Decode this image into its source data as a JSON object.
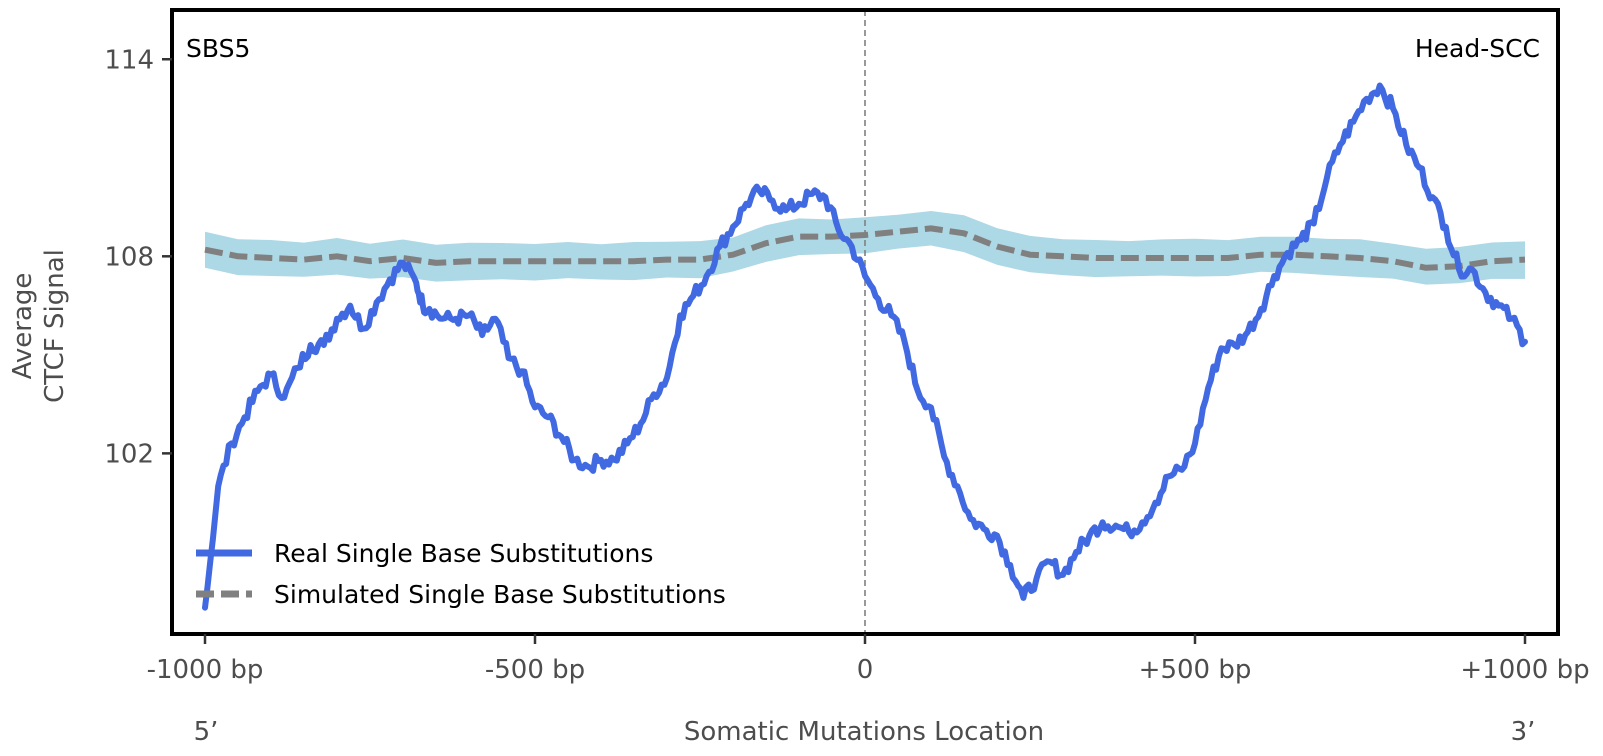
{
  "chart_data": {
    "type": "line",
    "title": "",
    "top_left_label": "SBS5",
    "top_right_label": "Head-SCC",
    "xlabel": "Somatic Mutations Location",
    "ylabel_lines": [
      "Average",
      "CTCF Signal"
    ],
    "x_end_labels": {
      "left": "5’",
      "right": "3’"
    },
    "xlim": [
      -1050,
      1050
    ],
    "ylim": [
      96.5,
      115.5
    ],
    "x_ticks": [
      {
        "value": -1000,
        "label": "-1000 bp"
      },
      {
        "value": -500,
        "label": "-500 bp"
      },
      {
        "value": 0,
        "label": "0"
      },
      {
        "value": 500,
        "label": "+500 bp"
      },
      {
        "value": 1000,
        "label": "+1000 bp"
      }
    ],
    "y_ticks": [
      {
        "value": 102,
        "label": "102"
      },
      {
        "value": 108,
        "label": "108"
      },
      {
        "value": 114,
        "label": "114"
      }
    ],
    "vline_x": 0,
    "legend": {
      "position": "bottom-left",
      "entries": [
        "Real Single Base Substitutions",
        "Simulated Single Base Substitutions"
      ]
    },
    "colors": {
      "real": "#4169e1",
      "simulated": "#808080",
      "band": "#add8e6",
      "frame": "#000000",
      "vline": "#808080"
    },
    "series": [
      {
        "name": "Real Single Base Substitutions",
        "style": "solid",
        "x": [
          -1000,
          -980,
          -960,
          -940,
          -920,
          -900,
          -880,
          -860,
          -840,
          -820,
          -800,
          -780,
          -760,
          -740,
          -720,
          -700,
          -680,
          -670,
          -660,
          -640,
          -620,
          -600,
          -580,
          -560,
          -540,
          -520,
          -500,
          -480,
          -460,
          -440,
          -420,
          -400,
          -380,
          -360,
          -340,
          -320,
          -300,
          -280,
          -260,
          -240,
          -220,
          -200,
          -180,
          -160,
          -140,
          -120,
          -100,
          -80,
          -60,
          -40,
          -20,
          0,
          20,
          40,
          60,
          80,
          100,
          120,
          140,
          160,
          180,
          200,
          220,
          240,
          260,
          280,
          300,
          320,
          340,
          360,
          380,
          400,
          420,
          440,
          460,
          480,
          500,
          520,
          540,
          560,
          580,
          600,
          620,
          640,
          660,
          680,
          700,
          720,
          740,
          760,
          780,
          800,
          820,
          840,
          860,
          880,
          900,
          920,
          940,
          960,
          980,
          1000
        ],
        "y": [
          97.3,
          101.0,
          102.3,
          103.1,
          103.9,
          104.4,
          103.7,
          104.6,
          105.3,
          105.3,
          106.1,
          106.5,
          105.8,
          106.6,
          107.3,
          107.8,
          107.2,
          106.5,
          106.4,
          106.1,
          106.1,
          106.2,
          105.6,
          106.1,
          104.9,
          104.5,
          103.4,
          103.1,
          102.5,
          101.8,
          101.6,
          101.8,
          101.8,
          102.3,
          102.9,
          103.8,
          104.3,
          106.2,
          106.8,
          107.4,
          108.3,
          108.9,
          109.6,
          110.0,
          109.7,
          109.4,
          109.6,
          109.9,
          109.8,
          108.8,
          108.3,
          107.4,
          106.7,
          106.2,
          105.4,
          103.9,
          103.4,
          101.9,
          101.0,
          100.0,
          99.7,
          99.5,
          98.6,
          97.6,
          98.2,
          98.7,
          98.3,
          99.0,
          99.5,
          99.9,
          99.8,
          99.6,
          99.9,
          100.5,
          101.3,
          101.5,
          102.3,
          104.0,
          105.2,
          105.3,
          105.7,
          106.4,
          107.4,
          108.1,
          108.5,
          109.0,
          110.4,
          111.4,
          112.1,
          112.8,
          113.2,
          112.5,
          111.4,
          110.7,
          109.8,
          108.9,
          107.6,
          107.6,
          106.9,
          106.5,
          106.1,
          105.4
        ]
      },
      {
        "name": "Simulated Single Base Substitutions",
        "style": "dashed",
        "band_halfwidth": 0.55,
        "x": [
          -1000,
          -950,
          -900,
          -850,
          -800,
          -750,
          -700,
          -650,
          -600,
          -550,
          -500,
          -450,
          -400,
          -350,
          -300,
          -250,
          -200,
          -150,
          -100,
          -50,
          0,
          50,
          100,
          150,
          200,
          250,
          300,
          350,
          400,
          450,
          500,
          550,
          600,
          650,
          700,
          750,
          800,
          850,
          900,
          950,
          1000
        ],
        "y": [
          108.2,
          108.0,
          107.95,
          107.9,
          108.0,
          107.85,
          107.95,
          107.8,
          107.85,
          107.85,
          107.85,
          107.85,
          107.85,
          107.85,
          107.9,
          107.9,
          108.05,
          108.4,
          108.6,
          108.6,
          108.65,
          108.75,
          108.85,
          108.7,
          108.3,
          108.05,
          108.0,
          107.95,
          107.95,
          107.95,
          107.95,
          107.95,
          108.05,
          108.05,
          108.0,
          107.95,
          107.85,
          107.65,
          107.7,
          107.85,
          107.9
        ]
      }
    ]
  }
}
